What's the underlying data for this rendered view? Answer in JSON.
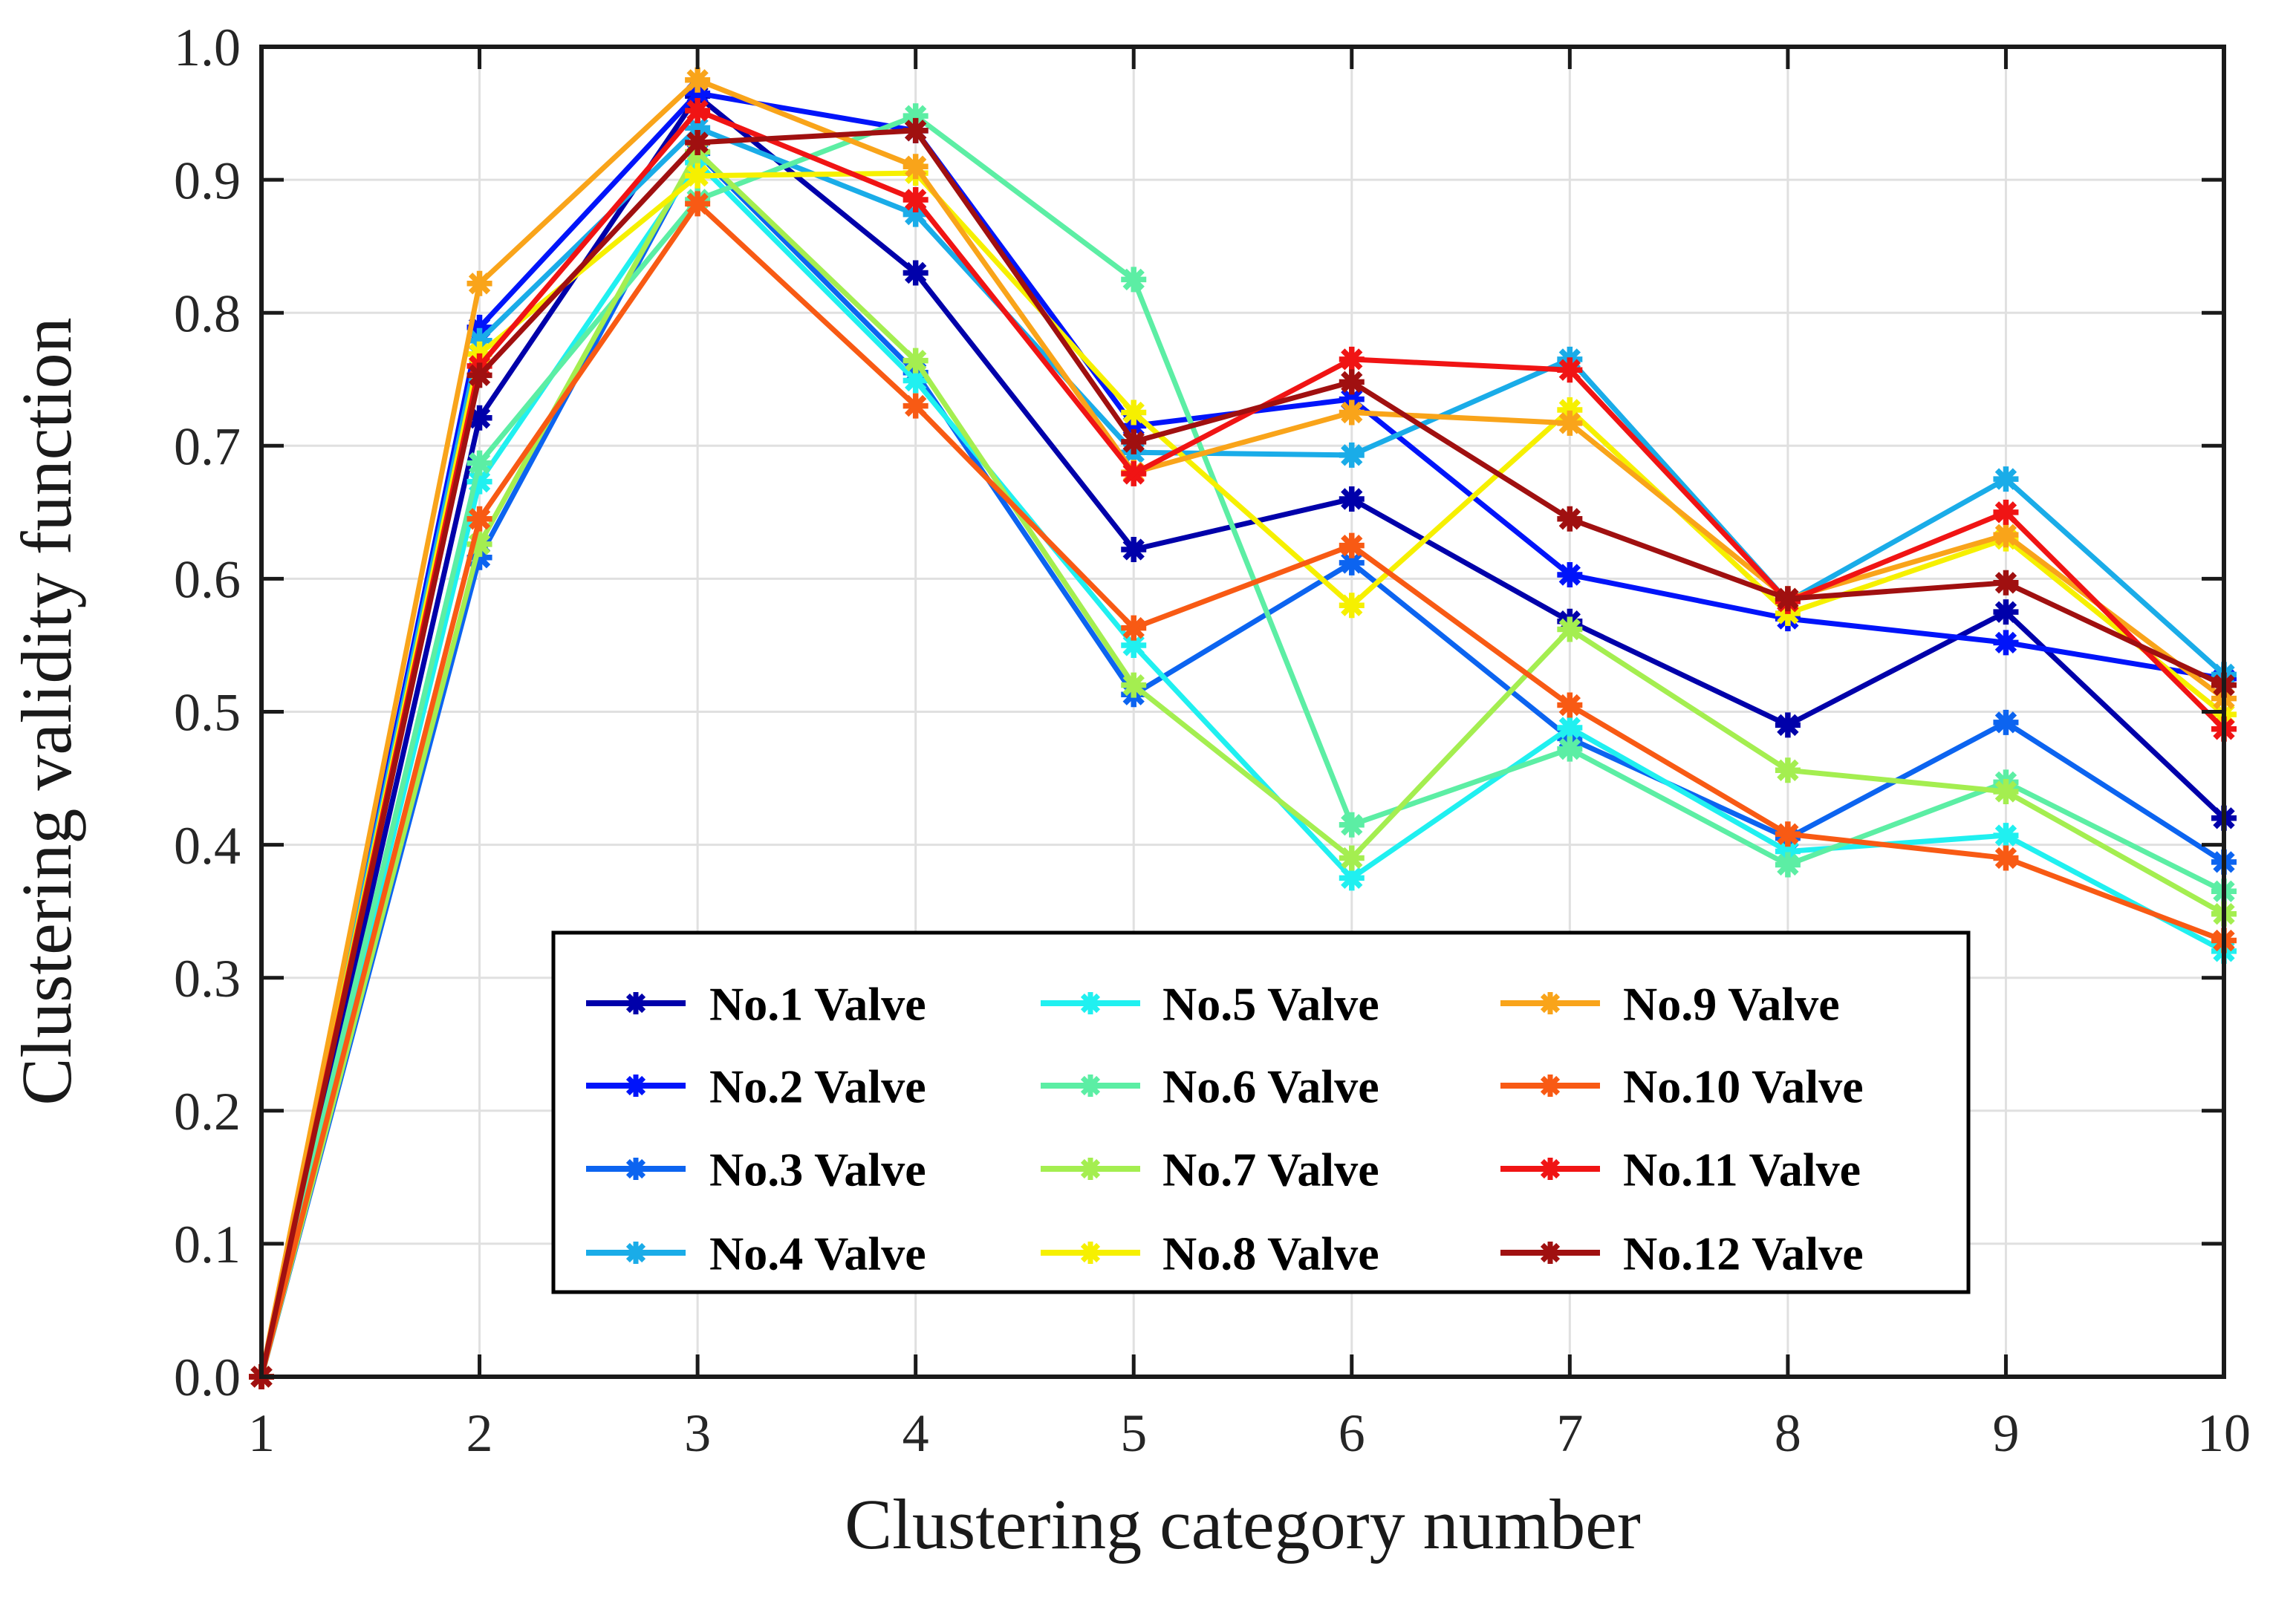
{
  "chart_data": {
    "type": "line",
    "title": "",
    "xlabel": "Clustering category number",
    "ylabel": "Clustering validity function",
    "x": [
      1,
      2,
      3,
      4,
      5,
      6,
      7,
      8,
      9,
      10
    ],
    "xlim": [
      1,
      10
    ],
    "ylim": [
      0.0,
      1.0
    ],
    "xtick_labels": [
      "1",
      "2",
      "3",
      "4",
      "5",
      "6",
      "7",
      "8",
      "9",
      "10"
    ],
    "ytick_values": [
      0.0,
      0.1,
      0.2,
      0.3,
      0.4,
      0.5,
      0.6,
      0.7,
      0.8,
      0.9,
      1.0
    ],
    "ytick_labels": [
      "0.0",
      "0.1",
      "0.2",
      "0.3",
      "0.4",
      "0.5",
      "0.6",
      "0.7",
      "0.8",
      "0.9",
      "1.0"
    ],
    "grid": true,
    "grid_color": "#e0e0e0",
    "axis_color": "#1a1a1a",
    "background_color": "#ffffff",
    "marker": "asterisk",
    "legend_position": "inside lower-center",
    "series": [
      {
        "name": "No.1 Valve",
        "color": "#0000AA",
        "values": [
          0.0,
          0.721,
          0.963,
          0.83,
          0.622,
          0.66,
          0.568,
          0.49,
          0.575,
          0.42
        ]
      },
      {
        "name": "No.2 Valve",
        "color": "#0014FA",
        "values": [
          0.0,
          0.789,
          0.965,
          0.937,
          0.715,
          0.735,
          0.603,
          0.57,
          0.552,
          0.525
        ]
      },
      {
        "name": "No.3 Valve",
        "color": "#0C64F0",
        "values": [
          0.0,
          0.616,
          0.92,
          0.755,
          0.513,
          0.612,
          0.48,
          0.405,
          0.492,
          0.387
        ]
      },
      {
        "name": "No.4 Valve",
        "color": "#1AACE8",
        "values": [
          0.0,
          0.779,
          0.939,
          0.874,
          0.695,
          0.693,
          0.765,
          0.583,
          0.675,
          0.528
        ]
      },
      {
        "name": "No.5 Valve",
        "color": "#20F0F0",
        "values": [
          0.0,
          0.673,
          0.913,
          0.749,
          0.55,
          0.375,
          0.488,
          0.395,
          0.407,
          0.32
        ]
      },
      {
        "name": "No.6 Valve",
        "color": "#5CEEA4",
        "values": [
          0.0,
          0.687,
          0.885,
          0.948,
          0.825,
          0.415,
          0.472,
          0.385,
          0.447,
          0.365
        ]
      },
      {
        "name": "No.7 Valve",
        "color": "#A4EE50",
        "values": [
          0.0,
          0.626,
          0.921,
          0.764,
          0.52,
          0.39,
          0.562,
          0.456,
          0.44,
          0.348
        ]
      },
      {
        "name": "No.8 Valve",
        "color": "#F6F000",
        "values": [
          0.0,
          0.769,
          0.903,
          0.905,
          0.725,
          0.58,
          0.727,
          0.574,
          0.63,
          0.498
        ]
      },
      {
        "name": "No.9 Valve",
        "color": "#F9A41A",
        "values": [
          0.0,
          0.822,
          0.975,
          0.91,
          0.68,
          0.725,
          0.717,
          0.585,
          0.633,
          0.51
        ]
      },
      {
        "name": "No.10 Valve",
        "color": "#F85A14",
        "values": [
          0.0,
          0.645,
          0.882,
          0.73,
          0.563,
          0.625,
          0.505,
          0.408,
          0.39,
          0.328
        ]
      },
      {
        "name": "No.11 Valve",
        "color": "#F01414",
        "values": [
          0.0,
          0.76,
          0.952,
          0.885,
          0.679,
          0.765,
          0.757,
          0.583,
          0.65,
          0.487
        ]
      },
      {
        "name": "No.12 Valve",
        "color": "#A01010",
        "values": [
          0.0,
          0.753,
          0.928,
          0.937,
          0.703,
          0.748,
          0.645,
          0.585,
          0.597,
          0.52
        ]
      }
    ]
  }
}
